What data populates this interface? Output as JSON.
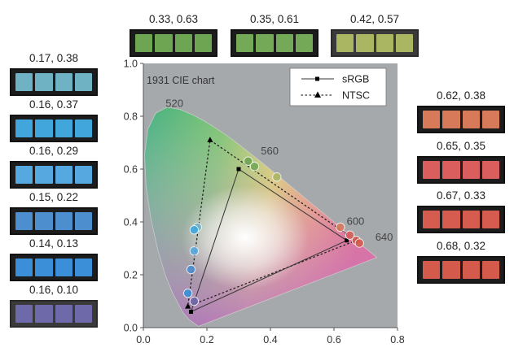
{
  "chart_data": {
    "type": "scatter",
    "title": "1931 CIE chart",
    "xlim": [
      0.0,
      0.8
    ],
    "ylim": [
      0.0,
      1.0
    ],
    "x_ticks": [
      "0.0",
      "0.2",
      "0.4",
      "0.6",
      "0.8"
    ],
    "y_ticks": [
      "0.0",
      "0.2",
      "0.4",
      "0.6",
      "0.8",
      "1.0"
    ],
    "wavelength_labels": [
      {
        "text": "520",
        "x": 0.07,
        "y": 0.835
      },
      {
        "text": "560",
        "x": 0.37,
        "y": 0.655
      },
      {
        "text": "600",
        "x": 0.64,
        "y": 0.39
      },
      {
        "text": "640",
        "x": 0.73,
        "y": 0.33
      }
    ],
    "legend": [
      {
        "name": "sRGB",
        "style": "solid",
        "marker": "square"
      },
      {
        "name": "NTSC",
        "style": "dotted",
        "marker": "triangle"
      }
    ],
    "series": [
      {
        "name": "sRGB",
        "points": [
          [
            0.64,
            0.33
          ],
          [
            0.3,
            0.6
          ],
          [
            0.15,
            0.06
          ]
        ]
      },
      {
        "name": "NTSC",
        "points": [
          [
            0.67,
            0.33
          ],
          [
            0.21,
            0.71
          ],
          [
            0.14,
            0.08
          ]
        ]
      }
    ],
    "measured_points": [
      [
        0.17,
        0.38
      ],
      [
        0.16,
        0.37
      ],
      [
        0.16,
        0.29
      ],
      [
        0.15,
        0.22
      ],
      [
        0.14,
        0.13
      ],
      [
        0.16,
        0.1
      ],
      [
        0.33,
        0.63
      ],
      [
        0.35,
        0.61
      ],
      [
        0.42,
        0.57
      ],
      [
        0.62,
        0.38
      ],
      [
        0.65,
        0.35
      ],
      [
        0.67,
        0.33
      ],
      [
        0.68,
        0.32
      ]
    ]
  },
  "swatches": [
    {
      "label": "0.17, 0.38",
      "color": "#6fb2c4"
    },
    {
      "label": "0.16, 0.37",
      "color": "#41a6dc"
    },
    {
      "label": "0.16, 0.29",
      "color": "#56a8e0"
    },
    {
      "label": "0.15, 0.22",
      "color": "#4d8ecf"
    },
    {
      "label": "0.14, 0.13",
      "color": "#3b8fd8"
    },
    {
      "label": "0.16, 0.10",
      "color": "#6e69a9"
    },
    {
      "label": "0.33, 0.63",
      "color": "#6ea552"
    },
    {
      "label": "0.35, 0.61",
      "color": "#73a957"
    },
    {
      "label": "0.42, 0.57",
      "color": "#aab662"
    },
    {
      "label": "0.62, 0.38",
      "color": "#d67a5a"
    },
    {
      "label": "0.65, 0.35",
      "color": "#da5e5d"
    },
    {
      "label": "0.67, 0.33",
      "color": "#d65c4f"
    },
    {
      "label": "0.68, 0.32",
      "color": "#d45a4c"
    }
  ]
}
